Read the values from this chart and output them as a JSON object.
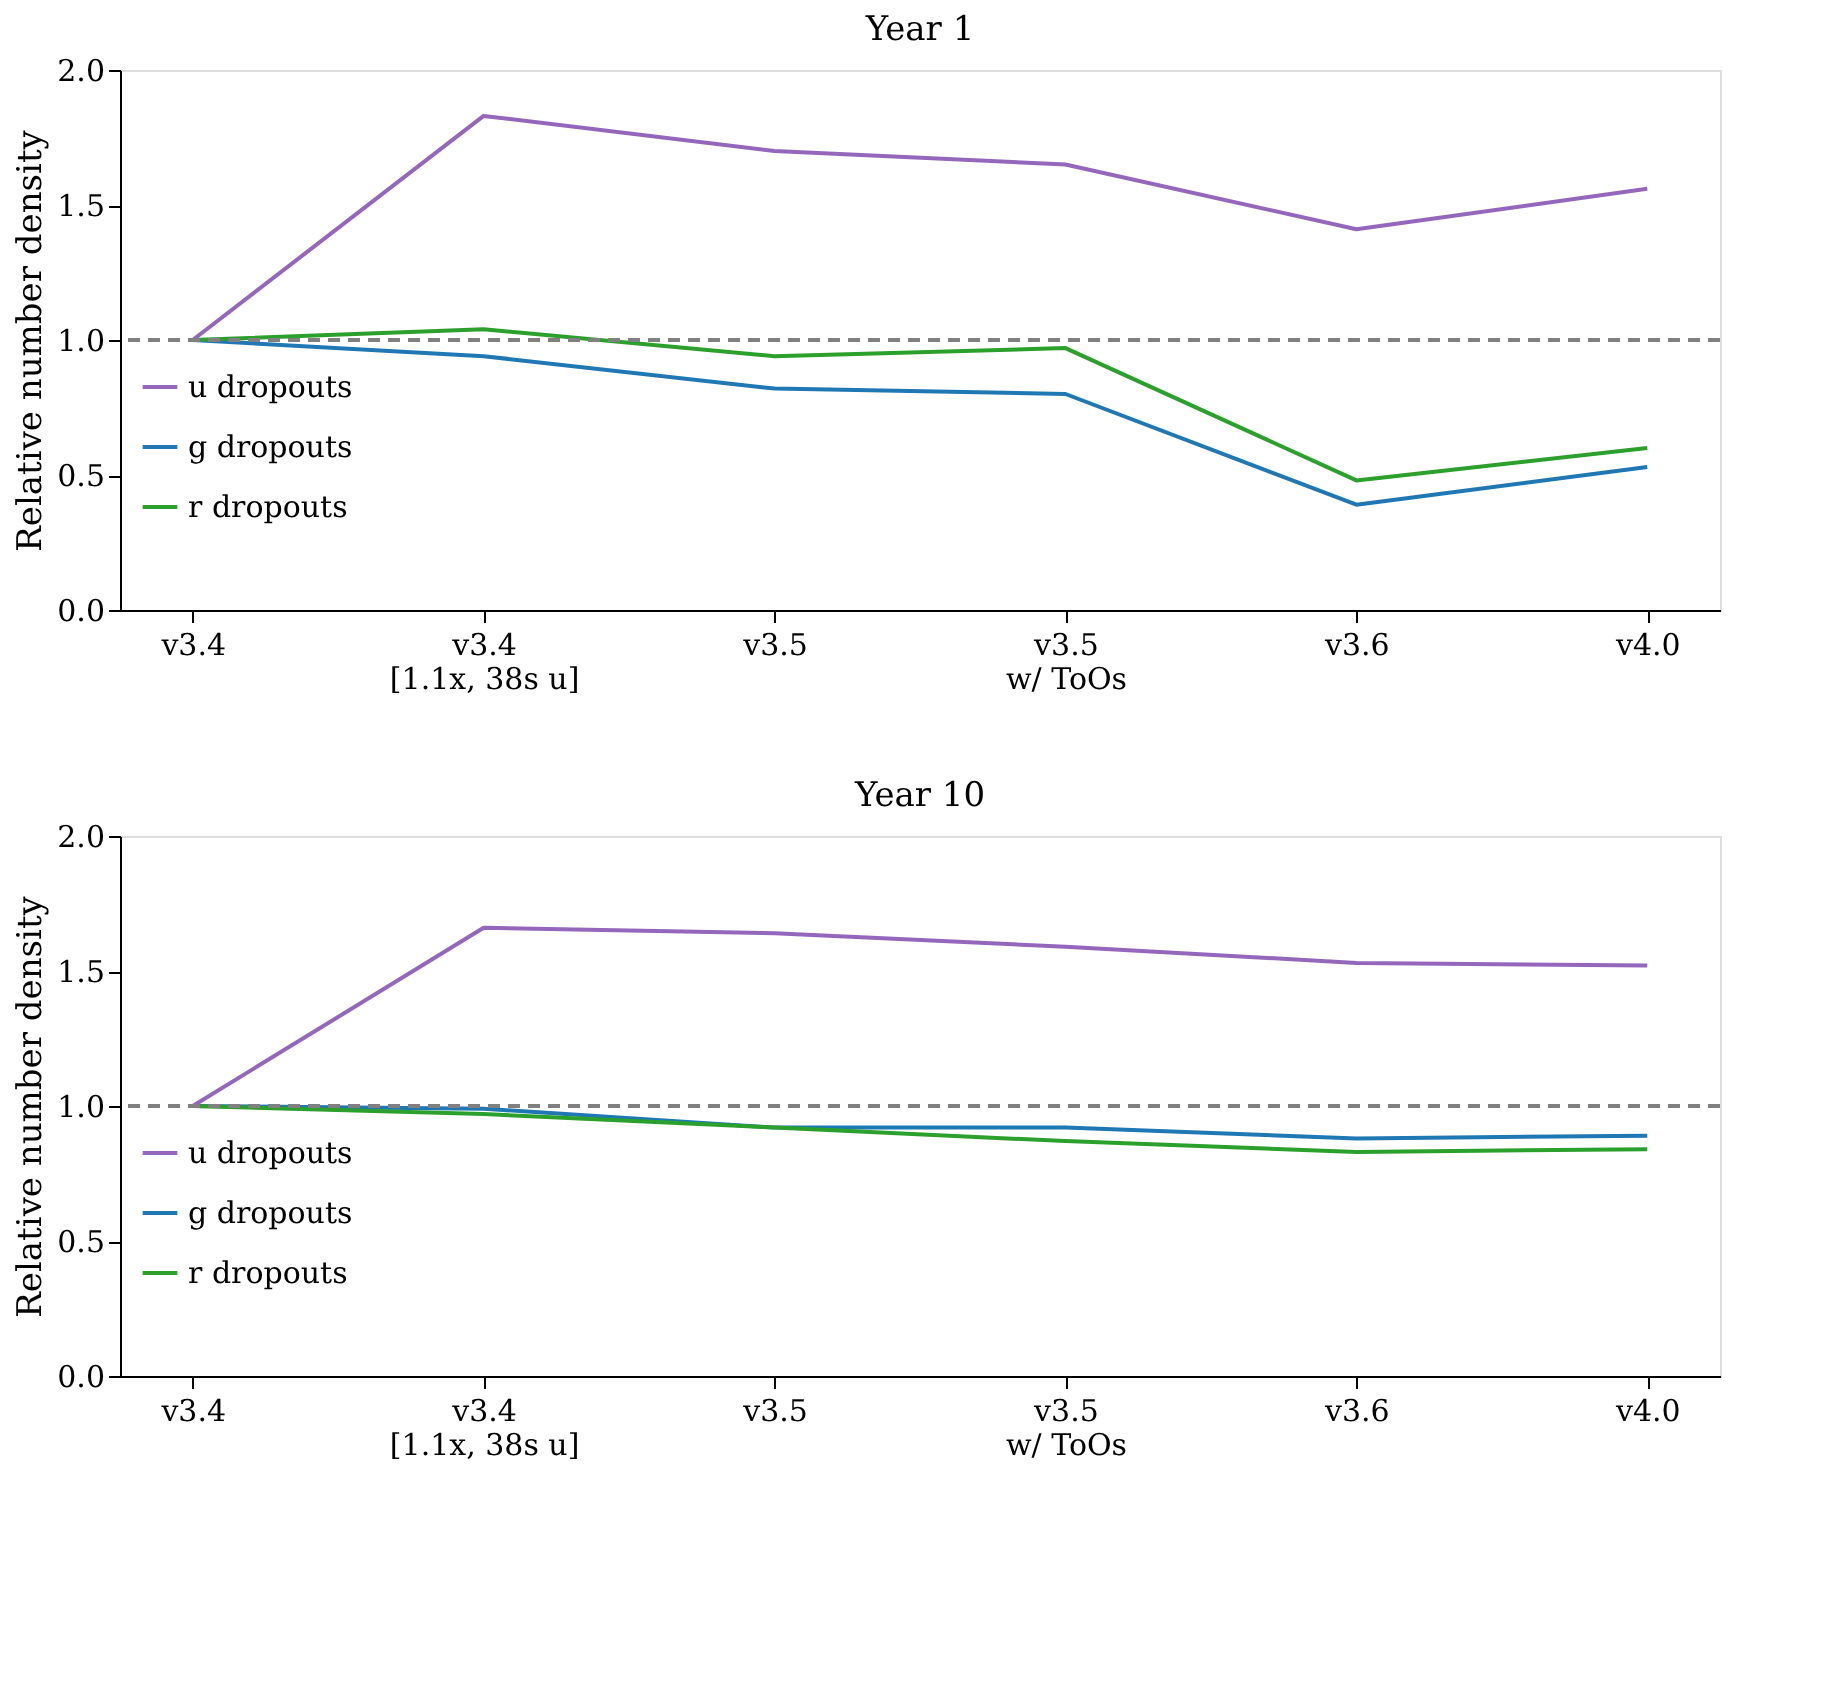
{
  "chart_data": [
    {
      "type": "line",
      "title": "Year 1",
      "ylabel": "Relative number density",
      "categories": [
        "v3.4",
        "v3.4\n[1.1x, 38s u]",
        "v3.5",
        "v3.5\nw/ ToOs",
        "v3.6",
        "v4.0"
      ],
      "series": [
        {
          "name": "u dropouts",
          "color": "#9467bd",
          "values": [
            1.0,
            1.83,
            1.7,
            1.65,
            1.41,
            1.56
          ]
        },
        {
          "name": "g dropouts",
          "color": "#1f77b4",
          "values": [
            1.0,
            0.94,
            0.82,
            0.8,
            0.39,
            0.53
          ]
        },
        {
          "name": "r dropouts",
          "color": "#2ca02c",
          "values": [
            1.0,
            1.04,
            0.94,
            0.97,
            0.48,
            0.6
          ]
        }
      ],
      "ylim": [
        0,
        2
      ],
      "yticks": [
        {
          "value": 0,
          "label": "0.0"
        },
        {
          "value": 0.5,
          "label": "0.5"
        },
        {
          "value": 1,
          "label": "1.0"
        },
        {
          "value": 1.5,
          "label": "1.5"
        },
        {
          "value": 2,
          "label": "2.0"
        }
      ],
      "ref_lines": [
        {
          "axis": "y",
          "value": 1,
          "color": "#808080",
          "line_style": "dashed"
        }
      ],
      "legend": "left",
      "grid": false,
      "marker": "none",
      "line_style": "solid"
    },
    {
      "type": "line",
      "title": "Year 10",
      "ylabel": "Relative number density",
      "categories": [
        "v3.4",
        "v3.4\n[1.1x, 38s u]",
        "v3.5",
        "v3.5\nw/ ToOs",
        "v3.6",
        "v4.0"
      ],
      "series": [
        {
          "name": "u dropouts",
          "color": "#9467bd",
          "values": [
            1.0,
            1.66,
            1.64,
            1.59,
            1.53,
            1.52
          ]
        },
        {
          "name": "g dropouts",
          "color": "#1f77b4",
          "values": [
            1.0,
            0.99,
            0.92,
            0.92,
            0.88,
            0.89
          ]
        },
        {
          "name": "r dropouts",
          "color": "#2ca02c",
          "values": [
            1.0,
            0.97,
            0.92,
            0.87,
            0.83,
            0.84
          ]
        }
      ],
      "ylim": [
        0,
        2
      ],
      "yticks": [
        {
          "value": 0,
          "label": "0.0"
        },
        {
          "value": 0.5,
          "label": "0.5"
        },
        {
          "value": 1,
          "label": "1.0"
        },
        {
          "value": 1.5,
          "label": "1.5"
        },
        {
          "value": 2,
          "label": "2.0"
        }
      ],
      "ref_lines": [
        {
          "axis": "y",
          "value": 1,
          "color": "#808080",
          "line_style": "dashed"
        }
      ],
      "legend": "left",
      "grid": false,
      "marker": "none",
      "line_style": "solid"
    }
  ]
}
